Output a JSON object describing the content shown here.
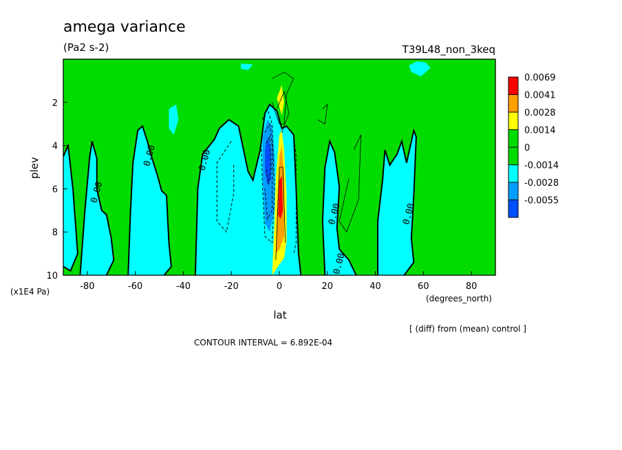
{
  "colors": {
    "pos_max": "#ff0000",
    "pos_3": "#ff9f00",
    "pos_2": "#ffff00",
    "zero_band": "#00dc00",
    "neg_1": "#00ffff",
    "neg_2": "#009fff",
    "neg_3": "#0050ff"
  },
  "header": {
    "title": "amega variance",
    "units": "(Pa2 s-2)",
    "run_id": "T39L48_non_3keq",
    "diff_note": "[ (diff) from (mean) control ]",
    "contour_interval": "CONTOUR INTERVAL = 6.892E-04"
  },
  "chart_data": {
    "type": "heatmap",
    "title": "amega variance",
    "xlabel": "lat",
    "xunit": "(degrees_north)",
    "ylabel": "plev",
    "yunit": "(x1E4 Pa)",
    "xlim": [
      -90,
      90
    ],
    "ylim": [
      10,
      0
    ],
    "x_ticks": [
      -80,
      -60,
      -40,
      -20,
      0,
      20,
      40,
      60,
      80
    ],
    "y_ticks": [
      2,
      4,
      6,
      8,
      10
    ],
    "legend": {
      "placement": "right",
      "levels": [
        "0.0069",
        "0.0041",
        "0.0028",
        "0.0014",
        "0",
        "-0.0014",
        "-0.0028",
        "-0.0055"
      ],
      "colors": [
        "#ff0000",
        "#ff9f00",
        "#ffff00",
        "#00dc00",
        "#00dc00",
        "#00ffff",
        "#009fff",
        "#0050ff"
      ]
    },
    "contour_labels": [
      {
        "text": "0.00",
        "lat": -75,
        "plev": 6.2
      },
      {
        "text": "0.00",
        "lat": -53,
        "plev": 4.5
      },
      {
        "text": "0.00",
        "lat": -30,
        "plev": 4.7
      },
      {
        "text": "0.00",
        "lat": 24,
        "plev": 7.2
      },
      {
        "text": "0.00",
        "lat": 26,
        "plev": 9.5
      },
      {
        "text": "0.00",
        "lat": 55,
        "plev": 7.2
      }
    ],
    "regions": [
      {
        "level": "neg1",
        "points": [
          [
            -90,
            4.5
          ],
          [
            -88,
            4
          ],
          [
            -86,
            6
          ],
          [
            -84,
            9
          ],
          [
            -87,
            9.8
          ],
          [
            -90,
            9.6
          ]
        ]
      },
      {
        "level": "neg1",
        "points": [
          [
            -83,
            10
          ],
          [
            -81,
            7
          ],
          [
            -79,
            4.5
          ],
          [
            -78,
            3.8
          ],
          [
            -76,
            4.6
          ],
          [
            -76,
            6
          ],
          [
            -74,
            7
          ],
          [
            -72,
            7.2
          ],
          [
            -70,
            8.3
          ],
          [
            -69,
            9.3
          ],
          [
            -72,
            10
          ]
        ]
      },
      {
        "level": "neg1",
        "points": [
          [
            -63,
            10
          ],
          [
            -62,
            7
          ],
          [
            -61,
            4.8
          ],
          [
            -59,
            3.3
          ],
          [
            -57,
            3.1
          ],
          [
            -55,
            3.8
          ],
          [
            -53,
            4.6
          ],
          [
            -51,
            5.3
          ],
          [
            -49,
            6.1
          ],
          [
            -47,
            6.3
          ],
          [
            -46,
            8.5
          ],
          [
            -45,
            9.6
          ],
          [
            -48,
            10
          ]
        ]
      },
      {
        "level": "neg1",
        "points": [
          [
            -35,
            10
          ],
          [
            -34,
            6
          ],
          [
            -32,
            4.4
          ],
          [
            -27,
            3.7
          ],
          [
            -25,
            3.2
          ],
          [
            -21,
            2.8
          ],
          [
            -17,
            3.1
          ],
          [
            -13,
            5.2
          ],
          [
            -11,
            5.6
          ],
          [
            -8,
            4.2
          ],
          [
            -6,
            2.5
          ],
          [
            -4,
            2.1
          ],
          [
            -1,
            2.4
          ],
          [
            1,
            3.2
          ],
          [
            3,
            3.1
          ],
          [
            6,
            3.5
          ],
          [
            7,
            6
          ],
          [
            8,
            9
          ],
          [
            9,
            10
          ]
        ]
      },
      {
        "level": "neg1",
        "points": [
          [
            19,
            10
          ],
          [
            18,
            7.5
          ],
          [
            19,
            5
          ],
          [
            21,
            3.8
          ],
          [
            23,
            4.3
          ],
          [
            25,
            5.9
          ],
          [
            24,
            7.8
          ],
          [
            25,
            8.8
          ],
          [
            29,
            9.3
          ],
          [
            32,
            10
          ]
        ]
      },
      {
        "level": "neg1",
        "points": [
          [
            41,
            10
          ],
          [
            41,
            7.5
          ],
          [
            43,
            5.6
          ],
          [
            44,
            4.2
          ],
          [
            46,
            4.9
          ],
          [
            49,
            4.4
          ],
          [
            51,
            3.8
          ],
          [
            53,
            4.8
          ],
          [
            56,
            3.3
          ],
          [
            57,
            3.6
          ],
          [
            56,
            6.3
          ],
          [
            55,
            8.3
          ],
          [
            56,
            9.4
          ],
          [
            52,
            10
          ]
        ]
      },
      {
        "level": "neg1",
        "points": [
          [
            -16,
            0.2
          ],
          [
            -11,
            0.25
          ],
          [
            -13,
            0.5
          ],
          [
            -16,
            0.45
          ]
        ]
      },
      {
        "level": "neg1",
        "points": [
          [
            54,
            0.3
          ],
          [
            57,
            0.1
          ],
          [
            61,
            0.15
          ],
          [
            63,
            0.4
          ],
          [
            59,
            0.8
          ],
          [
            55,
            0.6
          ]
        ]
      },
      {
        "level": "neg1",
        "points": [
          [
            -46,
            2.3
          ],
          [
            -43,
            2.1
          ],
          [
            -42,
            2.8
          ],
          [
            -44,
            3.5
          ],
          [
            -46,
            3.2
          ]
        ]
      },
      {
        "level": "neg2",
        "points": [
          [
            -7,
            3.6
          ],
          [
            -5,
            2.8
          ],
          [
            -3,
            3.1
          ],
          [
            -2,
            4.5
          ],
          [
            -2,
            7
          ],
          [
            -4,
            8
          ],
          [
            -6,
            7.6
          ],
          [
            -7,
            5.5
          ]
        ]
      },
      {
        "level": "neg3",
        "points": [
          [
            -6,
            4.2
          ],
          [
            -5,
            3.6
          ],
          [
            -3.5,
            4.2
          ],
          [
            -3.5,
            5.6
          ],
          [
            -5,
            5.8
          ],
          [
            -6,
            5.2
          ]
        ]
      },
      {
        "level": "pos2",
        "points": [
          [
            -3,
            10
          ],
          [
            -2,
            7.5
          ],
          [
            -1.5,
            5.5
          ],
          [
            0,
            3.5
          ],
          [
            1,
            3.3
          ],
          [
            2,
            4.2
          ],
          [
            3,
            6.2
          ],
          [
            3,
            8.4
          ],
          [
            2,
            9.2
          ],
          [
            0,
            9.5
          ]
        ]
      },
      {
        "level": "pos2",
        "points": [
          [
            -1,
            1.8
          ],
          [
            1,
            1.2
          ],
          [
            2,
            2
          ],
          [
            1,
            2.6
          ]
        ]
      },
      {
        "level": "pos3",
        "points": [
          [
            -1.5,
            9
          ],
          [
            -1,
            7
          ],
          [
            0,
            4.5
          ],
          [
            1,
            4
          ],
          [
            2,
            5.5
          ],
          [
            2,
            8.2
          ],
          [
            0,
            8.8
          ]
        ]
      },
      {
        "level": "posmax",
        "points": [
          [
            -0.5,
            7.2
          ],
          [
            0,
            5.6
          ],
          [
            1,
            5.4
          ],
          [
            1.5,
            7
          ],
          [
            0.5,
            7.4
          ]
        ]
      }
    ],
    "zero_contours": [
      [
        [
          -90,
          4.5
        ],
        [
          -88,
          4
        ],
        [
          -86,
          6
        ],
        [
          -84,
          9
        ],
        [
          -87,
          9.8
        ],
        [
          -90,
          9.6
        ]
      ],
      [
        [
          -83,
          10
        ],
        [
          -81,
          7
        ],
        [
          -79,
          4.5
        ],
        [
          -78,
          3.8
        ],
        [
          -76,
          4.6
        ],
        [
          -76,
          6
        ],
        [
          -74,
          7
        ],
        [
          -72,
          7.2
        ],
        [
          -70,
          8.3
        ],
        [
          -69,
          9.3
        ],
        [
          -72,
          10
        ]
      ],
      [
        [
          -63,
          10
        ],
        [
          -62,
          7
        ],
        [
          -61,
          4.8
        ],
        [
          -59,
          3.3
        ],
        [
          -57,
          3.1
        ],
        [
          -55,
          3.8
        ],
        [
          -53,
          4.6
        ],
        [
          -51,
          5.3
        ],
        [
          -49,
          6.1
        ],
        [
          -47,
          6.3
        ],
        [
          -46,
          8.5
        ],
        [
          -45,
          9.6
        ],
        [
          -48,
          10
        ]
      ],
      [
        [
          -35,
          10
        ],
        [
          -34,
          6
        ],
        [
          -32,
          4.4
        ],
        [
          -27,
          3.7
        ],
        [
          -25,
          3.2
        ],
        [
          -21,
          2.8
        ],
        [
          -17,
          3.1
        ],
        [
          -13,
          5.2
        ],
        [
          -11,
          5.6
        ],
        [
          -8,
          4.2
        ],
        [
          -6,
          2.5
        ],
        [
          -4,
          2.1
        ],
        [
          -1,
          2.4
        ],
        [
          1,
          3.2
        ],
        [
          3,
          3.1
        ],
        [
          6,
          3.5
        ],
        [
          7,
          6
        ],
        [
          8,
          9
        ],
        [
          9,
          10
        ]
      ],
      [
        [
          19,
          10
        ],
        [
          18,
          7.5
        ],
        [
          19,
          5
        ],
        [
          21,
          3.8
        ],
        [
          23,
          4.3
        ],
        [
          25,
          5.9
        ],
        [
          24,
          7.8
        ],
        [
          25,
          8.8
        ],
        [
          29,
          9.3
        ],
        [
          32,
          10
        ]
      ],
      [
        [
          41,
          10
        ],
        [
          41,
          7.5
        ],
        [
          43,
          5.6
        ],
        [
          44,
          4.2
        ],
        [
          46,
          4.9
        ],
        [
          49,
          4.4
        ],
        [
          51,
          3.8
        ],
        [
          53,
          4.8
        ],
        [
          56,
          3.3
        ],
        [
          57,
          3.6
        ],
        [
          56,
          6.3
        ],
        [
          55,
          8.3
        ],
        [
          56,
          9.4
        ],
        [
          52,
          10
        ]
      ]
    ],
    "dashed_contours": [
      [
        [
          -20,
          3.8
        ],
        [
          -26,
          4.8
        ],
        [
          -26,
          7.5
        ],
        [
          -22,
          8
        ],
        [
          -19,
          6.2
        ],
        [
          -19,
          4.8
        ]
      ],
      [
        [
          -7,
          2.8
        ],
        [
          -5,
          2.3
        ],
        [
          -3,
          3
        ],
        [
          -2,
          6
        ],
        [
          -3,
          8.5
        ],
        [
          -6,
          8.2
        ],
        [
          -7,
          6
        ],
        [
          -7.5,
          4
        ]
      ],
      [
        [
          -6,
          3.4
        ],
        [
          -4,
          3
        ],
        [
          -3,
          4
        ],
        [
          -3,
          7
        ],
        [
          -5,
          7.4
        ],
        [
          -6,
          6
        ]
      ],
      [
        [
          -5.5,
          3.9
        ],
        [
          -4,
          3.6
        ],
        [
          -3.5,
          5
        ],
        [
          -4.5,
          5.8
        ],
        [
          -5.5,
          5
        ]
      ],
      [
        [
          6,
          3.5
        ],
        [
          7,
          4.5
        ],
        [
          7,
          8.5
        ],
        [
          6,
          9
        ]
      ]
    ],
    "thin_contours": [
      [
        [
          -3,
          0.9
        ],
        [
          2,
          0.6
        ],
        [
          6,
          0.9
        ],
        [
          3,
          1.6
        ],
        [
          2,
          3
        ],
        [
          0,
          3
        ],
        [
          -3,
          2
        ]
      ],
      [
        [
          -1,
          2.3
        ],
        [
          2,
          1.5
        ],
        [
          4,
          2.5
        ],
        [
          1,
          3.4
        ]
      ],
      [
        [
          31,
          4.2
        ],
        [
          34,
          3.5
        ],
        [
          33,
          6.5
        ],
        [
          28,
          8
        ],
        [
          25,
          7.5
        ],
        [
          29,
          5.5
        ]
      ],
      [
        [
          18,
          2.3
        ],
        [
          20,
          2.1
        ],
        [
          19,
          3
        ],
        [
          16,
          2.8
        ]
      ],
      [
        [
          -1.5,
          9.3
        ],
        [
          0,
          5
        ],
        [
          1.5,
          5
        ],
        [
          2.5,
          8.5
        ]
      ]
    ]
  }
}
